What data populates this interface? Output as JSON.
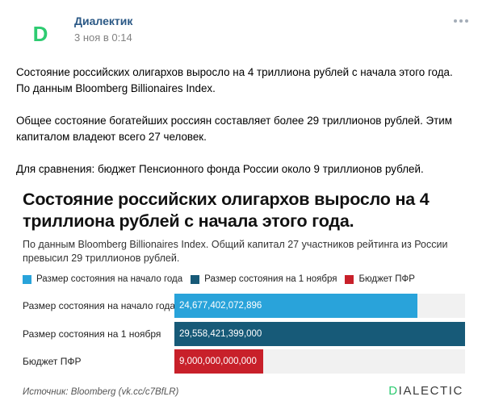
{
  "post": {
    "author": "Диалектик",
    "avatar_letter": "D",
    "date": "3 ноя в 0:14",
    "more_icon": "more-horizontal-icon",
    "paragraphs": [
      "Состояние российских олигархов выросло на 4 триллиона рублей с начала этого года. По данным Bloomberg Billionaires Index.",
      "Общее состояние богатейших россиян составляет более 29 триллионов рублей. Этим капиталом владеют всего 27 человек.",
      "Для сравнения: бюджет Пенсионного фонда России около 9 триллионов рублей."
    ]
  },
  "card": {
    "title": "Состояние российских олигархов выросло на 4 триллиона рублей с начала этого года.",
    "subtitle": "По данным Bloomberg Billionaires Index. Общий капитал 27 участников рейтинга из России превысил 29 триллионов рублей.",
    "source": "Источник: Bloomberg (vk.cc/c7BfLR)",
    "brand_accent": "D",
    "brand_rest": "IALECTIC"
  },
  "chart_data": {
    "type": "bar",
    "orientation": "horizontal",
    "categories": [
      "Размер состояния на начало года",
      "Размер состояния на 1 ноября",
      "Бюджет ПФР"
    ],
    "values": [
      24677402072896,
      29558421399000,
      9000000000000
    ],
    "value_labels": [
      "24,677,402,072,896",
      "29,558,421,399,000",
      "9,000,000,000,000"
    ],
    "colors": [
      "#29a3da",
      "#175a78",
      "#c8202a"
    ],
    "xlim": [
      0,
      29558421399000
    ],
    "legend": [
      "Размер состояния на начало года",
      "Размер состояния на 1 ноября",
      "Бюджет ПФР"
    ],
    "legend_position": "top",
    "grid": false
  },
  "colors": {
    "author_link": "#2a5885",
    "date": "#828282",
    "brand_green": "#2ecb71"
  }
}
